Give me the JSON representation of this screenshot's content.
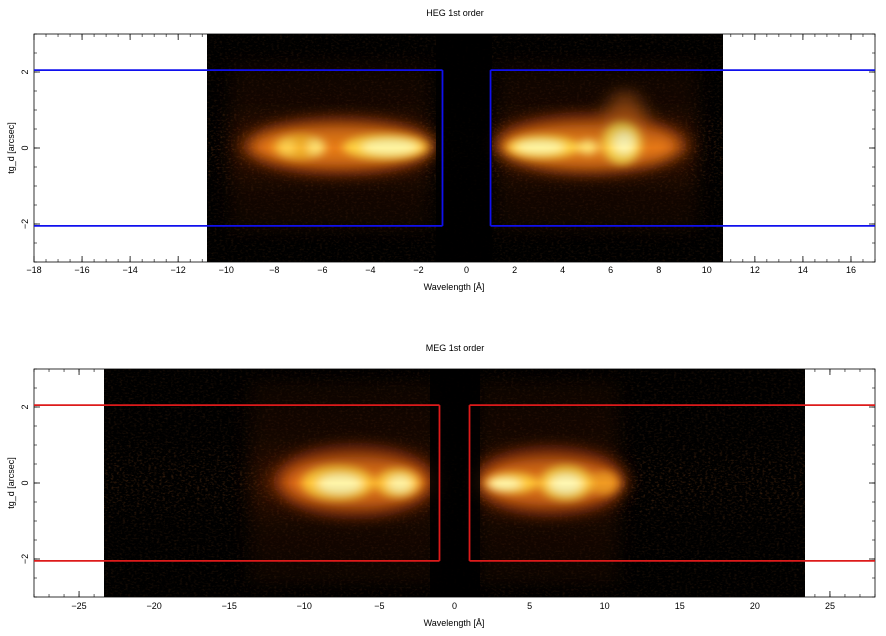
{
  "chart_data": [
    {
      "type": "heatmap",
      "title": "HEG 1st order",
      "xlabel": "Wavelength [Å]",
      "ylabel": "tg_d [arcsec]",
      "xlim": [
        -18,
        17
      ],
      "ylim": [
        -3,
        3
      ],
      "xticks": [
        "−18",
        "−16",
        "−14",
        "−12",
        "−10",
        "−8",
        "−6",
        "−4",
        "−2",
        "0",
        "2",
        "4",
        "6",
        "8",
        "10",
        "12",
        "14",
        "16"
      ],
      "xtick_values": [
        -18,
        -16,
        -14,
        -12,
        -10,
        -8,
        -6,
        -4,
        -2,
        0,
        2,
        4,
        6,
        8,
        10,
        12,
        14,
        16
      ],
      "yticks": [
        "−2",
        "0",
        "2"
      ],
      "ytick_values": [
        -2,
        0,
        2
      ],
      "image_x_range": [
        -10.8,
        10.7
      ],
      "box_color": "#1010ee",
      "extraction_regions": [
        {
          "x": [
            -18,
            -1.0
          ],
          "y": [
            -2.05,
            2.05
          ]
        },
        {
          "x": [
            1.0,
            17
          ],
          "y": [
            -2.05,
            2.05
          ]
        }
      ],
      "emission_features_wavelength": [
        -8.6,
        -7.8,
        -6.3,
        -4.0,
        -2.5,
        2.5,
        4.0,
        6.3,
        6.8
      ],
      "colormap": "heat (black-red-orange-yellow-white)"
    },
    {
      "type": "heatmap",
      "title": "MEG 1st order",
      "xlabel": "Wavelength [Å]",
      "ylabel": "tg_d [arcsec]",
      "xlim": [
        -28,
        28
      ],
      "ylim": [
        -3,
        3
      ],
      "xticks": [
        "−25",
        "−20",
        "−15",
        "−10",
        "−5",
        "0",
        "5",
        "10",
        "15",
        "20",
        "25"
      ],
      "xtick_values": [
        -25,
        -20,
        -15,
        -10,
        -5,
        0,
        5,
        10,
        15,
        20,
        25
      ],
      "yticks": [
        "−2",
        "0",
        "2"
      ],
      "ytick_values": [
        -2,
        0,
        2
      ],
      "image_x_range": [
        -23.4,
        23.3
      ],
      "box_color": "#dd1a1a",
      "extraction_regions": [
        {
          "x": [
            -28,
            -1.0
          ],
          "y": [
            -2.05,
            2.05
          ]
        },
        {
          "x": [
            1.0,
            28
          ],
          "y": [
            -2.05,
            2.05
          ]
        }
      ],
      "emission_features_wavelength": [
        -7.5,
        -3.5,
        2.0,
        6.5,
        9.5
      ],
      "colormap": "heat (black-red-orange-yellow-white)"
    }
  ]
}
